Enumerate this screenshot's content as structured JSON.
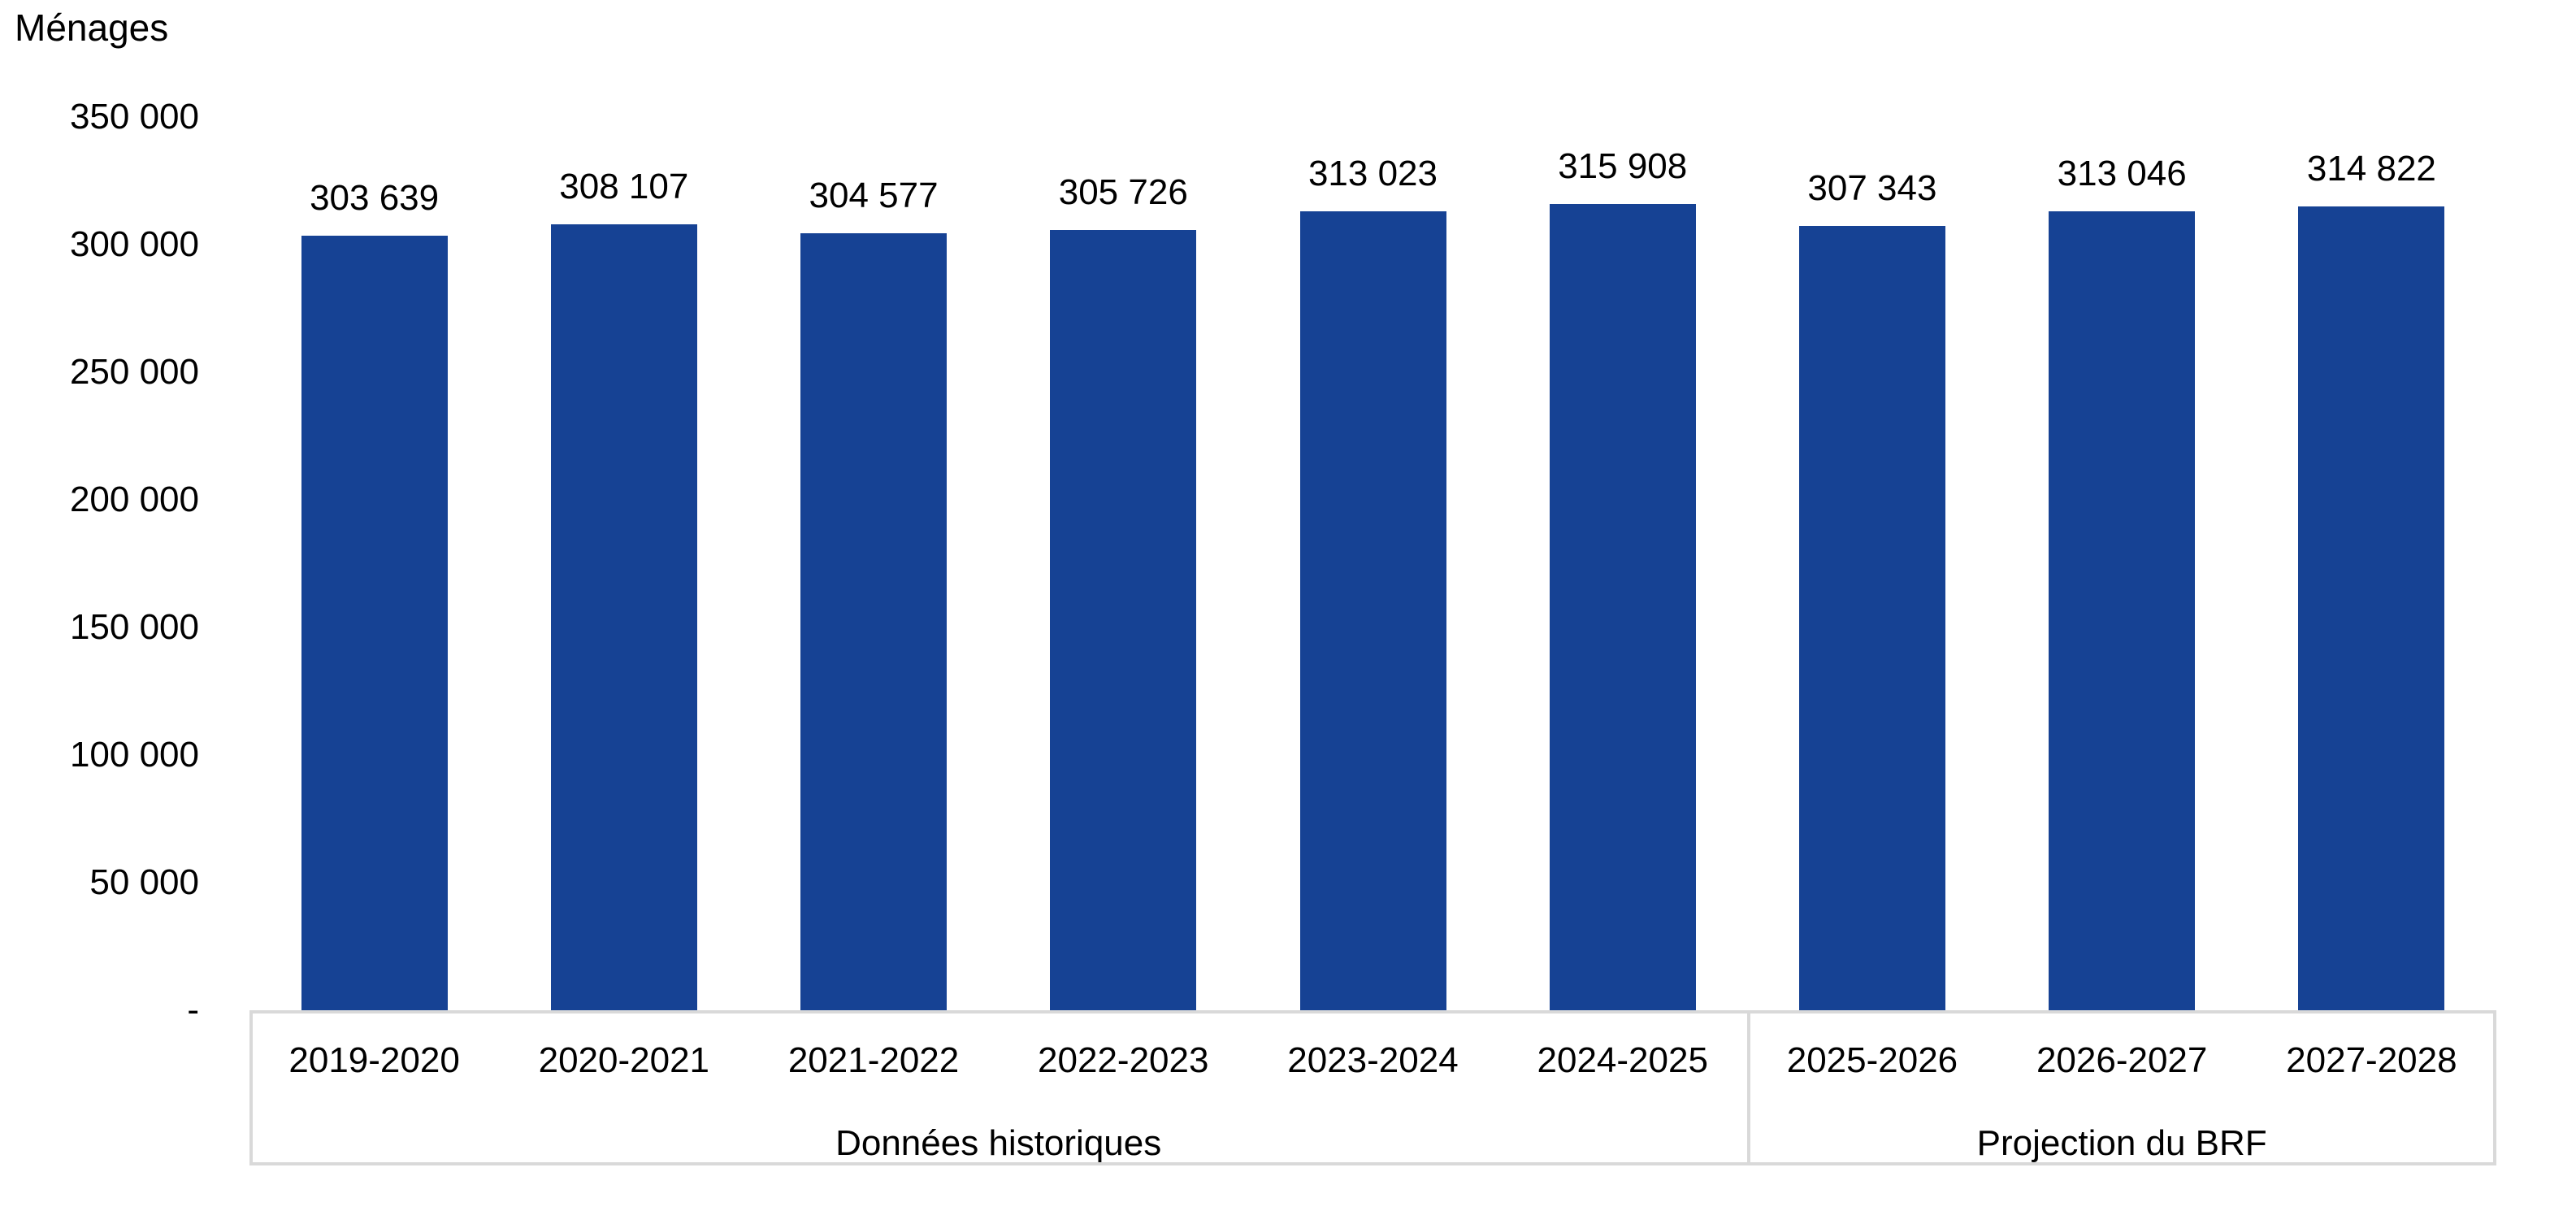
{
  "chart_data": {
    "type": "bar",
    "title": "Ménages",
    "ylabel": "Ménages",
    "categories": [
      "2019-2020",
      "2020-2021",
      "2021-2022",
      "2022-2023",
      "2023-2024",
      "2024-2025",
      "2025-2026",
      "2026-2027",
      "2027-2028"
    ],
    "values": [
      303639,
      308107,
      304577,
      305726,
      313023,
      315908,
      307343,
      313046,
      314822
    ],
    "value_labels": [
      "303 639",
      "308 107",
      "304 577",
      "305 726",
      "313 023",
      "315 908",
      "307 343",
      "313 046",
      "314 822"
    ],
    "y_tick_values": [
      0,
      50000,
      100000,
      150000,
      200000,
      250000,
      300000,
      350000
    ],
    "y_tick_labels": [
      "-",
      "50 000",
      "100 000",
      "150 000",
      "200 000",
      "250 000",
      "300 000",
      "350 000"
    ],
    "ylim": [
      0,
      350000
    ],
    "grid": "off",
    "legend": "none",
    "groups": [
      {
        "label": "Données historiques",
        "span": 6
      },
      {
        "label": "Projection du BRF",
        "span": 3
      }
    ],
    "bar_color": "#164294",
    "axis_line_color": "#D9D9D9",
    "text_color": "#000000"
  }
}
